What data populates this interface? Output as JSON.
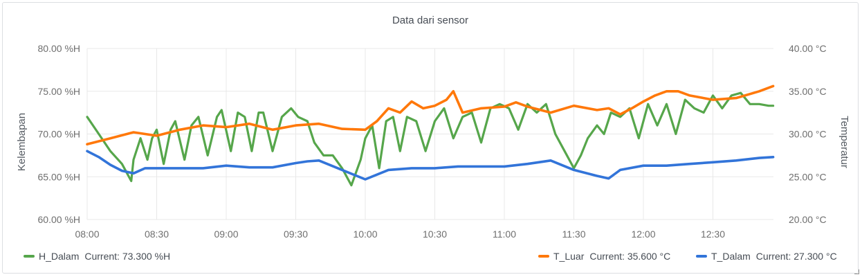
{
  "chart_data": {
    "type": "line",
    "title": "Data dari sensor",
    "y_left_label": "Kelembapan",
    "y_right_label": "Temperatur",
    "x_ticks": [
      "08:00",
      "08:30",
      "09:00",
      "09:30",
      "10:00",
      "10:30",
      "11:00",
      "11:30",
      "12:00",
      "12:30"
    ],
    "x_range": [
      "08:00",
      "12:57"
    ],
    "y_left_range": [
      60,
      80
    ],
    "y_left_ticks": [
      "80.00 %H",
      "75.00 %H",
      "70.00 %H",
      "65.00 %H",
      "60.00 %H"
    ],
    "y_right_range": [
      20,
      40
    ],
    "y_right_ticks": [
      "40.00 °C",
      "35.00 °C",
      "30.00 °C",
      "25.00 °C",
      "20.00 °C"
    ],
    "grid": true,
    "legend_placement": "bottom",
    "series": [
      {
        "name": "H_Dalam",
        "axis": "left",
        "color": "#56a64b",
        "current": "Current: 73.300 %H",
        "x": [
          "08:00",
          "08:05",
          "08:10",
          "08:15",
          "08:19",
          "08:20",
          "08:23",
          "08:26",
          "08:28",
          "08:30",
          "08:33",
          "08:36",
          "08:38",
          "08:42",
          "08:45",
          "08:48",
          "08:52",
          "08:56",
          "08:58",
          "09:02",
          "09:05",
          "09:08",
          "09:11",
          "09:14",
          "09:16",
          "09:20",
          "09:24",
          "09:28",
          "09:31",
          "09:35",
          "09:38",
          "09:42",
          "09:46",
          "09:50",
          "09:54",
          "09:58",
          "10:00",
          "10:03",
          "10:06",
          "10:09",
          "10:12",
          "10:15",
          "10:18",
          "10:22",
          "10:26",
          "10:30",
          "10:34",
          "10:38",
          "10:42",
          "10:46",
          "10:50",
          "10:54",
          "10:58",
          "11:02",
          "11:06",
          "11:10",
          "11:14",
          "11:18",
          "11:22",
          "11:26",
          "11:30",
          "11:33",
          "11:36",
          "11:40",
          "11:43",
          "11:46",
          "11:50",
          "11:54",
          "11:58",
          "12:02",
          "12:06",
          "12:10",
          "12:14",
          "12:18",
          "12:22",
          "12:26",
          "12:30",
          "12:34",
          "12:38",
          "12:42",
          "12:46",
          "12:50",
          "12:54",
          "12:56"
        ],
        "values": [
          72.0,
          70.0,
          68.0,
          66.5,
          64.5,
          67.0,
          69.5,
          67.0,
          69.5,
          70.5,
          66.5,
          70.5,
          71.5,
          67.0,
          71.0,
          72.0,
          67.5,
          72.0,
          72.8,
          68.0,
          72.5,
          72.0,
          68.0,
          72.5,
          72.5,
          68.0,
          72.0,
          73.0,
          72.0,
          71.5,
          69.0,
          67.5,
          67.5,
          66.0,
          64.0,
          67.0,
          69.5,
          71.0,
          66.0,
          71.5,
          72.0,
          68.0,
          72.0,
          71.5,
          68.0,
          71.5,
          73.0,
          69.5,
          72.0,
          72.5,
          69.0,
          73.0,
          73.5,
          73.0,
          70.5,
          73.5,
          72.5,
          73.5,
          70.0,
          68.0,
          66.0,
          67.5,
          69.5,
          71.0,
          70.0,
          72.5,
          72.0,
          73.0,
          69.5,
          73.5,
          71.0,
          73.5,
          70.0,
          74.0,
          73.0,
          72.5,
          74.5,
          73.0,
          74.5,
          74.8,
          73.5,
          73.5,
          73.3,
          73.3
        ]
      },
      {
        "name": "T_Luar",
        "axis": "right",
        "color": "#ff780a",
        "current": "Current: 35.600 °C",
        "x": [
          "08:00",
          "08:10",
          "08:20",
          "08:30",
          "08:40",
          "08:50",
          "09:00",
          "09:10",
          "09:20",
          "09:30",
          "09:40",
          "09:50",
          "10:00",
          "10:05",
          "10:10",
          "10:15",
          "10:20",
          "10:25",
          "10:30",
          "10:35",
          "10:38",
          "10:42",
          "10:50",
          "11:00",
          "11:05",
          "11:10",
          "11:20",
          "11:30",
          "11:40",
          "11:45",
          "11:50",
          "11:55",
          "12:00",
          "12:05",
          "12:10",
          "12:15",
          "12:20",
          "12:30",
          "12:40",
          "12:50",
          "12:56"
        ],
        "values": [
          28.8,
          29.5,
          30.2,
          29.8,
          30.5,
          31.0,
          30.8,
          31.2,
          30.5,
          31.0,
          31.2,
          30.6,
          30.5,
          31.5,
          33.0,
          32.5,
          33.8,
          33.0,
          33.3,
          34.0,
          35.0,
          32.5,
          33.0,
          33.2,
          33.7,
          33.2,
          32.5,
          33.3,
          32.8,
          33.0,
          32.3,
          33.0,
          33.8,
          34.5,
          35.0,
          35.0,
          34.5,
          34.0,
          34.2,
          35.0,
          35.6
        ]
      },
      {
        "name": "T_Dalam",
        "axis": "right",
        "color": "#3274d9",
        "current": "Current: 27.300 °C",
        "x": [
          "08:00",
          "08:05",
          "08:10",
          "08:15",
          "08:20",
          "08:25",
          "08:30",
          "08:40",
          "08:50",
          "09:00",
          "09:10",
          "09:20",
          "09:30",
          "09:35",
          "09:40",
          "09:50",
          "10:00",
          "10:10",
          "10:20",
          "10:30",
          "10:40",
          "10:50",
          "11:00",
          "11:10",
          "11:20",
          "11:30",
          "11:40",
          "11:45",
          "11:50",
          "12:00",
          "12:10",
          "12:20",
          "12:30",
          "12:40",
          "12:50",
          "12:56"
        ],
        "values": [
          28.0,
          27.3,
          26.4,
          25.7,
          25.4,
          26.0,
          26.0,
          26.0,
          26.0,
          26.3,
          26.1,
          26.1,
          26.6,
          26.8,
          26.9,
          25.8,
          24.7,
          25.8,
          26.0,
          26.0,
          26.2,
          26.2,
          26.2,
          26.5,
          26.9,
          25.8,
          25.1,
          24.8,
          25.8,
          26.3,
          26.3,
          26.5,
          26.7,
          26.9,
          27.2,
          27.3
        ]
      }
    ]
  }
}
